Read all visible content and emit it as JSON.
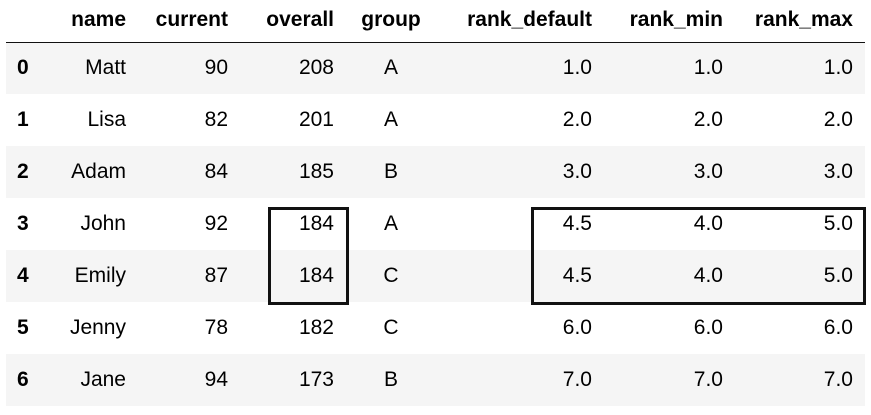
{
  "table": {
    "columns": [
      "",
      "name",
      "current",
      "overall",
      "group",
      "rank_default",
      "rank_min",
      "rank_max"
    ],
    "rows": [
      {
        "index": "0",
        "name": "Matt",
        "current": "90",
        "overall": "208",
        "group": "A",
        "rank_default": "1.0",
        "rank_min": "1.0",
        "rank_max": "1.0"
      },
      {
        "index": "1",
        "name": "Lisa",
        "current": "82",
        "overall": "201",
        "group": "A",
        "rank_default": "2.0",
        "rank_min": "2.0",
        "rank_max": "2.0"
      },
      {
        "index": "2",
        "name": "Adam",
        "current": "84",
        "overall": "185",
        "group": "B",
        "rank_default": "3.0",
        "rank_min": "3.0",
        "rank_max": "3.0"
      },
      {
        "index": "3",
        "name": "John",
        "current": "92",
        "overall": "184",
        "group": "A",
        "rank_default": "4.5",
        "rank_min": "4.0",
        "rank_max": "5.0"
      },
      {
        "index": "4",
        "name": "Emily",
        "current": "87",
        "overall": "184",
        "group": "C",
        "rank_default": "4.5",
        "rank_min": "4.0",
        "rank_max": "5.0"
      },
      {
        "index": "5",
        "name": "Jenny",
        "current": "78",
        "overall": "182",
        "group": "C",
        "rank_default": "6.0",
        "rank_min": "6.0",
        "rank_max": "6.0"
      },
      {
        "index": "6",
        "name": "Jane",
        "current": "94",
        "overall": "173",
        "group": "B",
        "rank_default": "7.0",
        "rank_min": "7.0",
        "rank_max": "7.0"
      }
    ]
  },
  "colors": {
    "stripe": "#f5f5f5",
    "highlight_border": "#111111"
  }
}
